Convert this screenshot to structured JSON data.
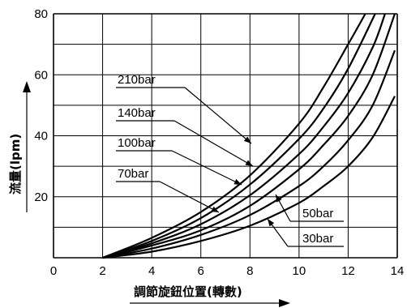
{
  "chart_data": {
    "type": "line",
    "title": "",
    "xlabel": "調節旋鈕位置(轉數)",
    "ylabel": "流量(lpm)",
    "xlim": [
      0,
      14
    ],
    "ylim": [
      0,
      80
    ],
    "x_ticks": [
      "0",
      "2",
      "4",
      "6",
      "8",
      "10",
      "12",
      "14"
    ],
    "y_ticks": [
      "20",
      "40",
      "60",
      "80"
    ],
    "grid": true,
    "series": [
      {
        "name": "210bar",
        "x": [
          2,
          4,
          6,
          8,
          10,
          11,
          12,
          12.7
        ],
        "y": [
          0,
          6.5,
          15,
          27,
          44,
          56,
          70,
          80
        ]
      },
      {
        "name": "140bar",
        "x": [
          2,
          4,
          6,
          8,
          10,
          11,
          12,
          13.1
        ],
        "y": [
          0,
          5.5,
          13,
          24,
          39,
          49,
          62,
          80
        ]
      },
      {
        "name": "100bar",
        "x": [
          2,
          4,
          6,
          8,
          10,
          11,
          12,
          13,
          13.5
        ],
        "y": [
          0,
          4.7,
          11,
          20.5,
          34,
          43,
          54,
          69,
          80
        ]
      },
      {
        "name": "70bar",
        "x": [
          2,
          4,
          6,
          8,
          10,
          11,
          12,
          13,
          13.9
        ],
        "y": [
          0,
          4,
          9,
          17,
          29,
          37,
          46.5,
          60,
          80
        ]
      },
      {
        "name": "50bar",
        "x": [
          2,
          4,
          6,
          8,
          10,
          11,
          12,
          13,
          13.9
        ],
        "y": [
          0,
          3,
          7.5,
          14,
          23.5,
          30,
          38.5,
          50,
          68
        ]
      },
      {
        "name": "30bar",
        "x": [
          2,
          4,
          6,
          8,
          10,
          11,
          12,
          13,
          13.9
        ],
        "y": [
          0,
          2,
          5.5,
          10.5,
          18,
          23.5,
          30,
          39.5,
          53
        ]
      }
    ],
    "annotations": [
      {
        "text": "210bar",
        "side": "left",
        "x": 8.2,
        "y": 36.5
      },
      {
        "text": "140bar",
        "side": "left",
        "x": 8,
        "y": 31.5
      },
      {
        "text": "100bar",
        "side": "left",
        "x": 7.7,
        "y": 24.5
      },
      {
        "text": "70bar",
        "side": "left",
        "x": 6.6,
        "y": 15
      },
      {
        "text": "50bar",
        "side": "right",
        "x": 9,
        "y": 18.5
      },
      {
        "text": "30bar",
        "side": "right",
        "x": 8.6,
        "y": 11
      }
    ],
    "line_color": "#000000",
    "grid_color": "#000000"
  }
}
